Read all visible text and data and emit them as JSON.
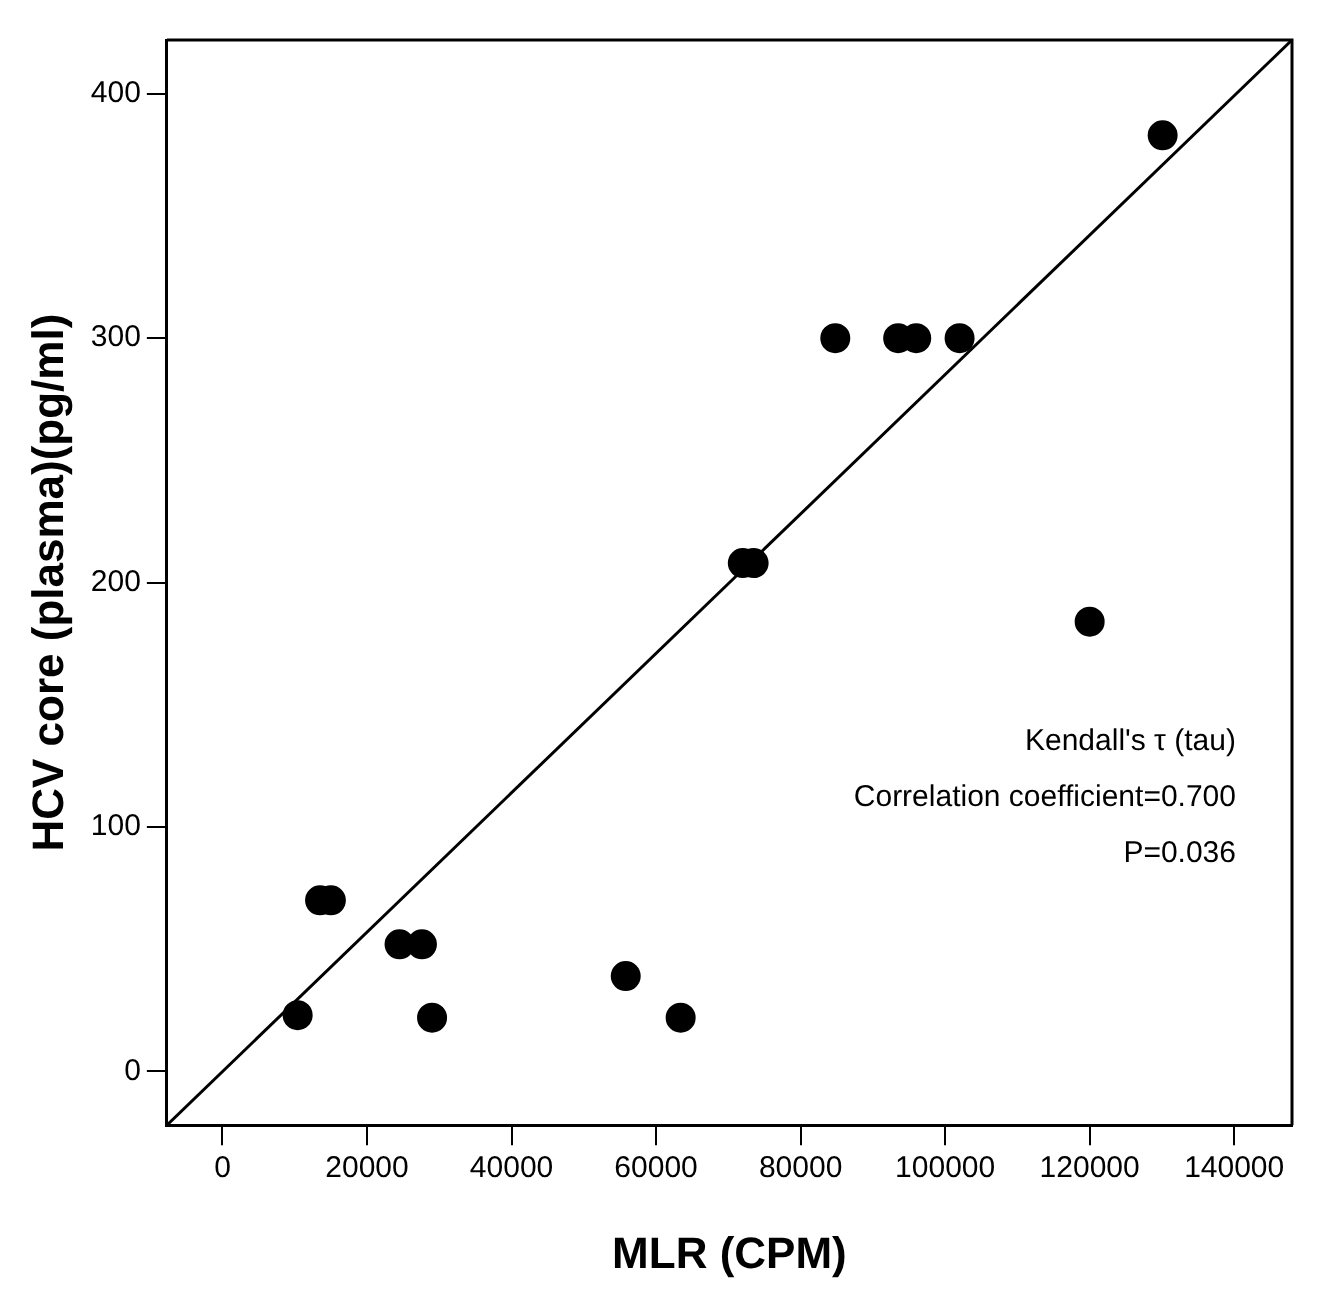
{
  "chart_data": {
    "type": "scatter",
    "xlabel": "MLR (CPM)",
    "ylabel": "HCV core (plasma)(pg/ml)",
    "xlim": [
      -7700,
      148000
    ],
    "ylim": [
      -22,
      422
    ],
    "xticks": [
      0,
      20000,
      40000,
      60000,
      80000,
      100000,
      120000,
      140000
    ],
    "yticks": [
      0,
      100,
      200,
      300,
      400
    ],
    "grid": false,
    "legend": false,
    "marker": "circle",
    "series": [
      {
        "color": "#000000",
        "x": [
          10400,
          13500,
          15000,
          24500,
          27600,
          29000,
          55800,
          63400,
          72000,
          73500,
          84800,
          93500,
          96000,
          102000,
          120000,
          130100
        ],
        "values": [
          23,
          70,
          70,
          52,
          52,
          22,
          39,
          22,
          208,
          208,
          300,
          300,
          300,
          300,
          184,
          383
        ]
      },
      {
        "type": "line",
        "color": "#000000",
        "marker": "none",
        "line_style": "solid",
        "x": [
          -7700,
          148000
        ],
        "values": [
          -22,
          422
        ]
      }
    ],
    "annotations": [
      "Kendall's τ (tau)",
      "Correlation coefficient=0.700",
      "P=0.036"
    ]
  }
}
